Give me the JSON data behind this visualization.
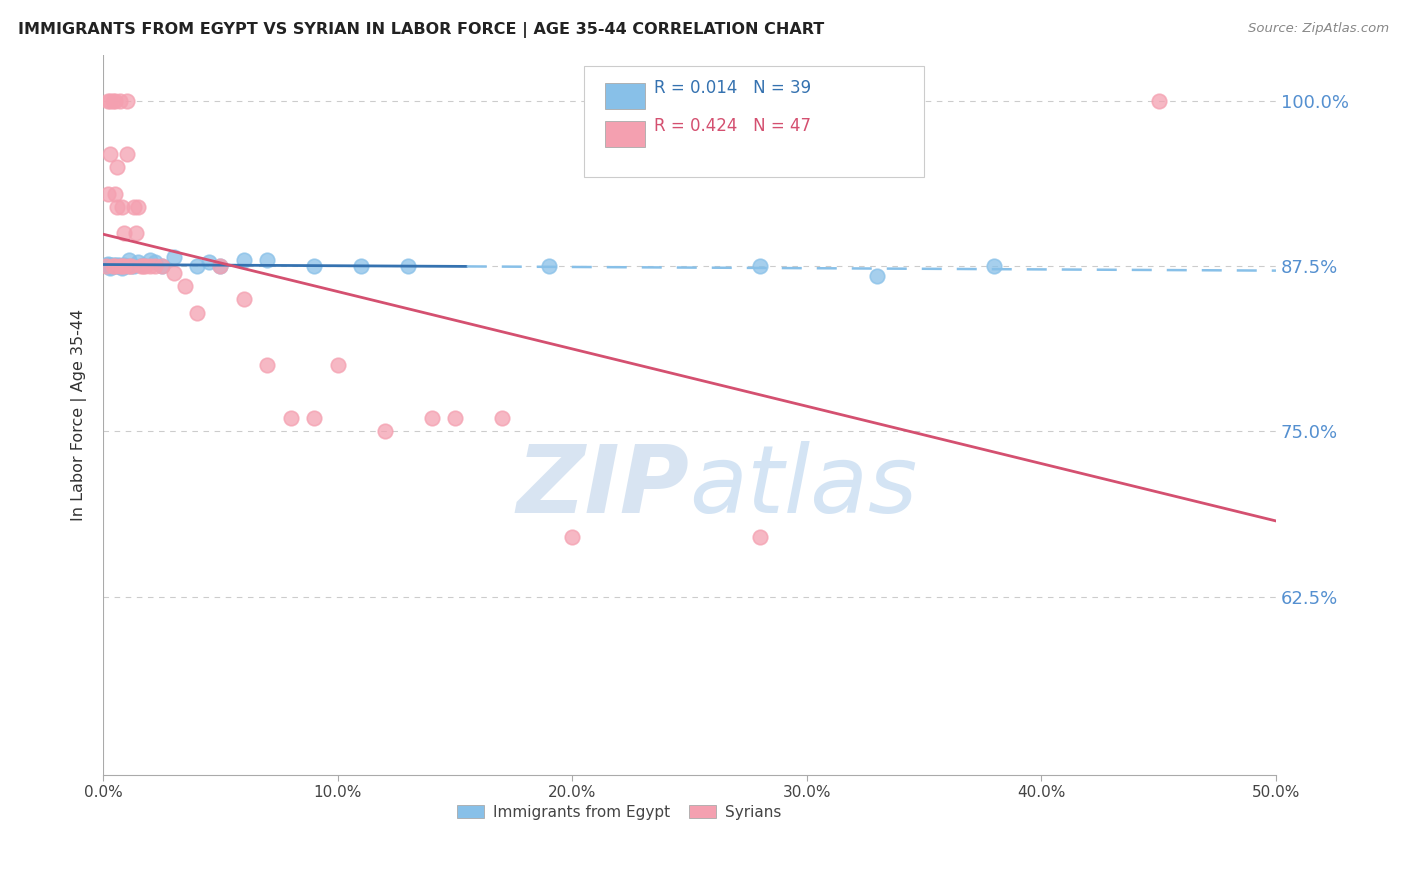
{
  "title": "IMMIGRANTS FROM EGYPT VS SYRIAN IN LABOR FORCE | AGE 35-44 CORRELATION CHART",
  "source": "Source: ZipAtlas.com",
  "ylabel": "In Labor Force | Age 35-44",
  "xlim": [
    0.0,
    0.5
  ],
  "ylim": [
    0.49,
    1.035
  ],
  "ytick_vals": [
    0.625,
    0.75,
    0.875,
    1.0
  ],
  "ytick_labels": [
    "62.5%",
    "75.0%",
    "87.5%",
    "100.0%"
  ],
  "xtick_vals": [
    0.0,
    0.1,
    0.2,
    0.3,
    0.4,
    0.5
  ],
  "xtick_labels": [
    "0.0%",
    "10.0%",
    "20.0%",
    "30.0%",
    "40.0%",
    "50.0%"
  ],
  "egypt_R": "0.014",
  "egypt_N": "39",
  "syria_R": "0.424",
  "syria_N": "47",
  "egypt_color": "#88c0e8",
  "syria_color": "#f4a0b0",
  "egypt_trend_color": "#3572b0",
  "syria_trend_color": "#d45070",
  "dashed_line_color": "#88c0e8",
  "watermark": "ZIPatlas",
  "watermark_color_zip": "#b8cfe8",
  "watermark_color_atlas": "#a0b8d8",
  "background_color": "#ffffff",
  "grid_color": "#cccccc",
  "egypt_x": [
    0.001,
    0.002,
    0.002,
    0.003,
    0.003,
    0.003,
    0.004,
    0.004,
    0.005,
    0.005,
    0.006,
    0.006,
    0.007,
    0.007,
    0.008,
    0.008,
    0.009,
    0.01,
    0.011,
    0.012,
    0.013,
    0.015,
    0.017,
    0.02,
    0.022,
    0.025,
    0.03,
    0.04,
    0.045,
    0.05,
    0.06,
    0.07,
    0.09,
    0.11,
    0.13,
    0.19,
    0.28,
    0.33,
    0.38
  ],
  "egypt_y": [
    0.876,
    0.875,
    0.877,
    0.876,
    0.875,
    0.874,
    0.875,
    0.876,
    0.875,
    0.876,
    0.876,
    0.875,
    0.875,
    0.876,
    0.875,
    0.874,
    0.876,
    0.875,
    0.88,
    0.875,
    0.875,
    0.878,
    0.876,
    0.88,
    0.878,
    0.875,
    0.882,
    0.875,
    0.878,
    0.875,
    0.88,
    0.88,
    0.875,
    0.875,
    0.875,
    0.875,
    0.875,
    0.868,
    0.875
  ],
  "syria_x": [
    0.001,
    0.002,
    0.002,
    0.003,
    0.003,
    0.004,
    0.004,
    0.005,
    0.005,
    0.005,
    0.006,
    0.006,
    0.007,
    0.007,
    0.008,
    0.008,
    0.009,
    0.009,
    0.01,
    0.01,
    0.011,
    0.012,
    0.013,
    0.014,
    0.015,
    0.016,
    0.017,
    0.018,
    0.02,
    0.022,
    0.025,
    0.03,
    0.035,
    0.04,
    0.05,
    0.06,
    0.07,
    0.08,
    0.09,
    0.1,
    0.12,
    0.14,
    0.15,
    0.17,
    0.2,
    0.28,
    0.45
  ],
  "syria_y": [
    0.875,
    1.0,
    0.93,
    1.0,
    0.96,
    1.0,
    0.875,
    1.0,
    0.93,
    0.875,
    0.95,
    0.92,
    1.0,
    0.875,
    0.92,
    0.875,
    0.9,
    0.875,
    0.96,
    1.0,
    0.875,
    0.875,
    0.92,
    0.9,
    0.92,
    0.875,
    0.875,
    0.875,
    0.875,
    0.875,
    0.875,
    0.87,
    0.86,
    0.84,
    0.875,
    0.85,
    0.8,
    0.76,
    0.76,
    0.8,
    0.75,
    0.76,
    0.76,
    0.76,
    0.67,
    0.67,
    1.0
  ]
}
